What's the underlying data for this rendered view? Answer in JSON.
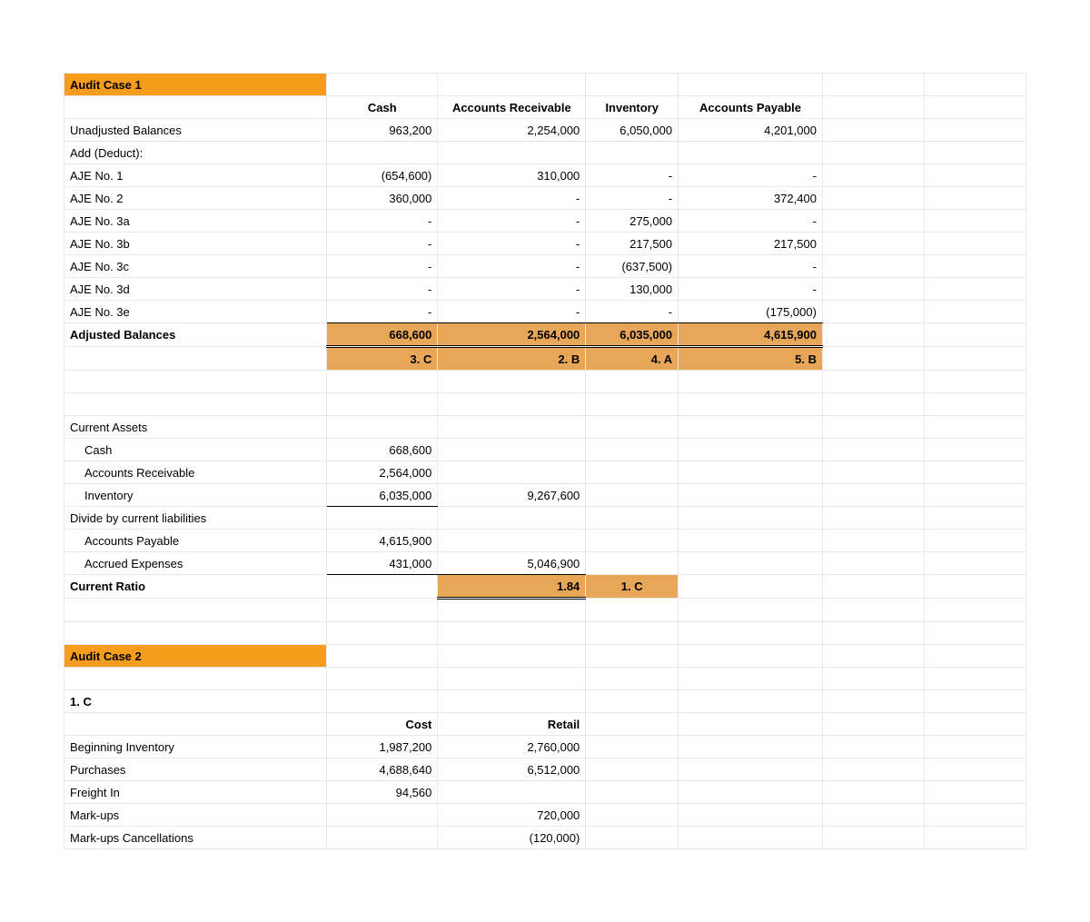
{
  "colors": {
    "header_orange": "#f79d1e",
    "answer_tan": "#e8a659",
    "grid": "#e8e8e8",
    "text": "#000000",
    "bg": "#ffffff"
  },
  "case1": {
    "title": "Audit Case 1",
    "col_headers": {
      "c1": "Cash",
      "c2": "Accounts Receivable",
      "c3": "Inventory",
      "c4": "Accounts Payable"
    },
    "rows": {
      "unadj": {
        "label": "Unadjusted Balances",
        "c1": "963,200",
        "c2": "2,254,000",
        "c3": "6,050,000",
        "c4": "4,201,000"
      },
      "addded": {
        "label": "Add (Deduct):"
      },
      "aje1": {
        "label": "AJE No. 1",
        "c1": "(654,600)",
        "c2": "310,000",
        "c3": "-",
        "c4": "-"
      },
      "aje2": {
        "label": "AJE No. 2",
        "c1": "360,000",
        "c2": "-",
        "c3": "-",
        "c4": "372,400"
      },
      "aje3a": {
        "label": "AJE No. 3a",
        "c1": "-",
        "c2": "-",
        "c3": "275,000",
        "c4": "-"
      },
      "aje3b": {
        "label": "AJE No. 3b",
        "c1": "-",
        "c2": "-",
        "c3": "217,500",
        "c4": "217,500"
      },
      "aje3c": {
        "label": "AJE No. 3c",
        "c1": "-",
        "c2": "-",
        "c3": "(637,500)",
        "c4": "-"
      },
      "aje3d": {
        "label": "AJE No. 3d",
        "c1": "-",
        "c2": "-",
        "c3": "130,000",
        "c4": "-"
      },
      "aje3e": {
        "label": "AJE No. 3e",
        "c1": "-",
        "c2": "-",
        "c3": "-",
        "c4": "(175,000)"
      },
      "adj": {
        "label": "Adjusted Balances",
        "c1": "668,600",
        "c2": "2,564,000",
        "c3": "6,035,000",
        "c4": "4,615,900"
      },
      "answers": {
        "c1": "3. C",
        "c2": "2. B",
        "c3": "4. A",
        "c4": "5. B"
      }
    },
    "current_assets_hdr": "Current Assets",
    "ca": {
      "cash": {
        "label": "Cash",
        "v": "668,600"
      },
      "ar": {
        "label": "Accounts Receivable",
        "v": "2,564,000"
      },
      "inv": {
        "label": "Inventory",
        "v": "6,035,000",
        "total": "9,267,600"
      }
    },
    "div_label": "Divide by current liabilities",
    "cl": {
      "ap": {
        "label": "Accounts Payable",
        "v": "4,615,900"
      },
      "acc": {
        "label": "Accrued Expenses",
        "v": "431,000",
        "total": "5,046,900"
      }
    },
    "ratio": {
      "label": "Current Ratio",
      "v": "1.84",
      "ans": "1. C"
    }
  },
  "case2": {
    "title": "Audit Case 2",
    "q": "1. C",
    "col_headers": {
      "c1": "Cost",
      "c2": "Retail"
    },
    "rows": {
      "beginv": {
        "label": "Beginning Inventory",
        "c1": "1,987,200",
        "c2": "2,760,000"
      },
      "purch": {
        "label": "Purchases",
        "c1": "4,688,640",
        "c2": "6,512,000"
      },
      "freight": {
        "label": "Freight In",
        "c1": "94,560"
      },
      "markups": {
        "label": "Mark-ups",
        "c2": "720,000"
      },
      "mcancel": {
        "label": "Mark-ups Cancellations",
        "c2": "(120,000)"
      }
    }
  }
}
